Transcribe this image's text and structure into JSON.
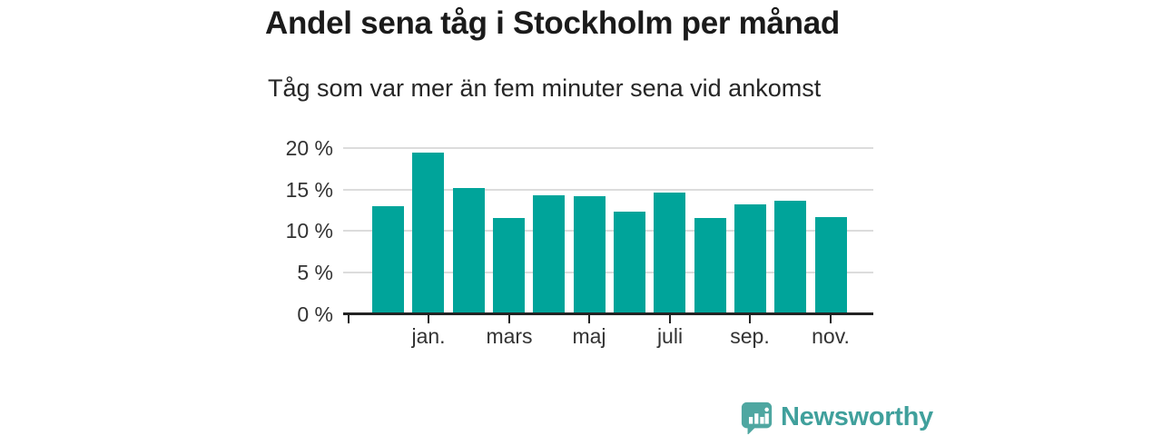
{
  "header": {
    "title": "Andel sena tåg i Stockholm per månad",
    "subtitle": "Tåg som var mer än fem minuter sena vid ankomst"
  },
  "chart_data": {
    "type": "bar",
    "title": "Andel sena tåg i Stockholm per månad",
    "subtitle": "Tåg som var mer än fem minuter sena vid ankomst",
    "unit": "%",
    "values": [
      13.0,
      19.5,
      15.2,
      11.6,
      14.3,
      14.2,
      12.4,
      14.6,
      11.6,
      13.2,
      13.7,
      11.7
    ],
    "x_ticklabels": [
      "jan.",
      "mars",
      "maj",
      "juli",
      "sep.",
      "nov."
    ],
    "x_tick_bar_indices": [
      1,
      3,
      5,
      7,
      9,
      11
    ],
    "y_ticks": [
      {
        "value": 0,
        "label": "0 %"
      },
      {
        "value": 5,
        "label": "5 %"
      },
      {
        "value": 10,
        "label": "10 %"
      },
      {
        "value": 15,
        "label": "15 %"
      },
      {
        "value": 20,
        "label": "20 %"
      }
    ],
    "ylim": [
      0,
      21
    ],
    "grid": "horizontal",
    "legend": "none",
    "bar_color": "#00a49a"
  },
  "footer": {
    "brand": "Newsworthy",
    "logo_color": "#4fa7a1",
    "icon_color": "#ffffff"
  }
}
